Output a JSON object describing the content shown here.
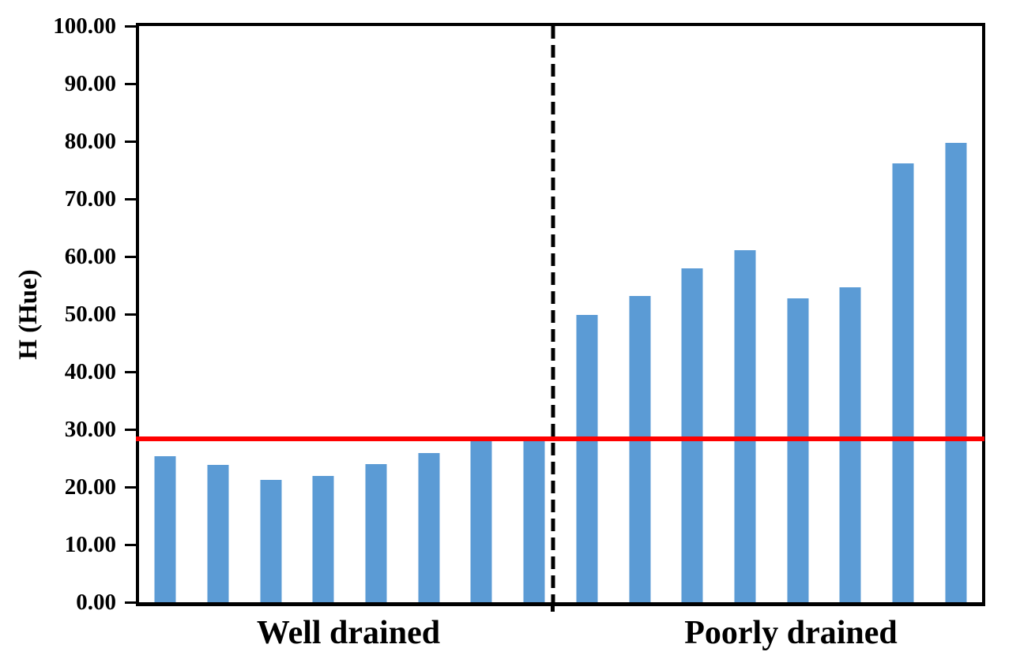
{
  "figure": {
    "background_color": "#FFFFFF",
    "axis_color": "#000000",
    "text_color": "#000000"
  },
  "chart_data": {
    "type": "bar",
    "title": "",
    "xlabel": "",
    "ylabel": "H (Hue)",
    "ylim": [
      0,
      100
    ],
    "ytick_step": 10,
    "ytick_labels_top_to_bottom": [
      "100.00",
      "90.00",
      "80.00",
      "70.00",
      "60.00",
      "50.00",
      "40.00",
      "30.00",
      "20.00",
      "10.00",
      "0.00"
    ],
    "grid": "off",
    "legend": "none",
    "bar_color": "#5B9BD5",
    "groups": [
      {
        "label": "Well drained",
        "values": [
          25.3,
          23.8,
          21.3,
          21.9,
          24.0,
          25.9,
          28.1,
          28.1
        ]
      },
      {
        "label": "Poorly drained",
        "values": [
          49.8,
          53.2,
          57.9,
          61.1,
          52.7,
          54.6,
          76.2,
          79.7
        ]
      }
    ],
    "reference_line": {
      "orientation": "horizontal",
      "value": 28.4,
      "color": "#FF0000"
    },
    "divider_line": {
      "orientation": "vertical",
      "position_fraction": 0.491,
      "style": "dashed",
      "color": "#000000"
    }
  }
}
